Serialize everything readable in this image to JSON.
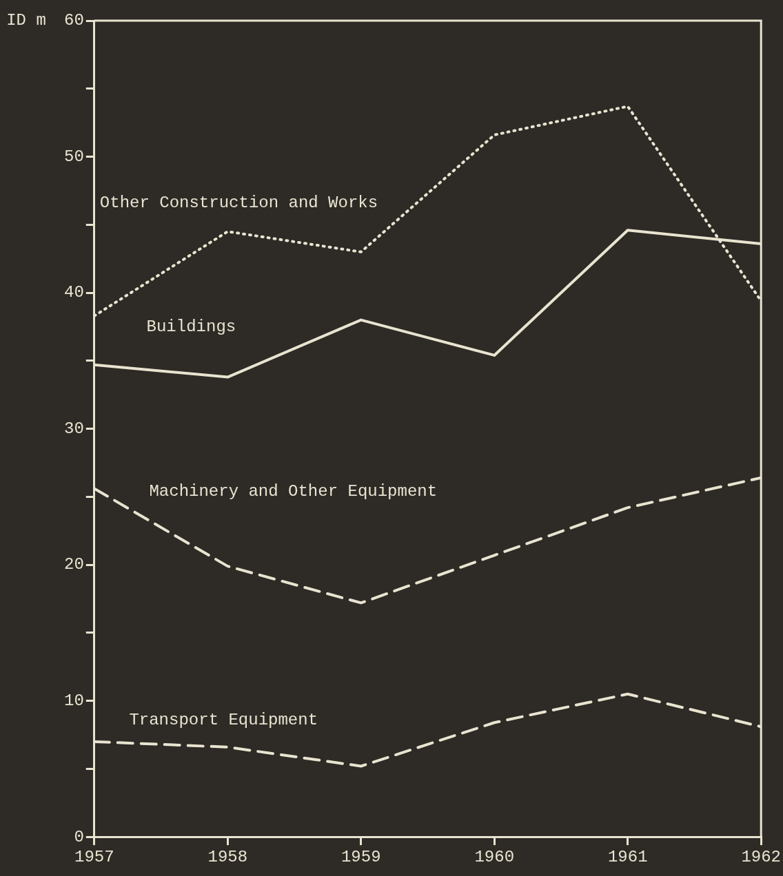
{
  "chart_data": {
    "type": "line",
    "x": [
      1957,
      1958,
      1959,
      1960,
      1961,
      1962
    ],
    "xlim": [
      1957,
      1962
    ],
    "xticks": [
      1957,
      1958,
      1959,
      1960,
      1961,
      1962
    ],
    "ylabel": "ID m",
    "ylim": [
      0,
      60
    ],
    "yticks": [
      0,
      {
        "value": 5,
        "label": null
      },
      10,
      {
        "value": 15,
        "label": null
      },
      20,
      {
        "value": 25,
        "label": null
      },
      30,
      {
        "value": 35,
        "label": null
      },
      40,
      {
        "value": 45,
        "label": null
      },
      50,
      {
        "value": 55,
        "label": null
      },
      60
    ],
    "grid": false,
    "legend": false,
    "marker": "none",
    "series": [
      {
        "name": "Other Construction and Works",
        "color": "#e8e4d0",
        "line_style": "dotted",
        "values": [
          38.3,
          44.5,
          43.0,
          51.6,
          53.7,
          39.4
        ]
      },
      {
        "name": "Buildings",
        "color": "#e8e4d0",
        "line_style": "solid",
        "values": [
          34.7,
          33.8,
          38.0,
          35.4,
          44.6,
          43.6
        ]
      },
      {
        "name": "Machinery and Other Equipment",
        "color": "#e8e4d0",
        "line_style": "dashed",
        "values": [
          25.6,
          19.9,
          17.2,
          20.7,
          24.2,
          26.4
        ]
      },
      {
        "name": "Transport Equipment",
        "color": "#e8e4d0",
        "line_style": "dashed",
        "values": [
          7.0,
          6.6,
          5.2,
          8.4,
          10.5,
          8.1
        ]
      }
    ]
  }
}
